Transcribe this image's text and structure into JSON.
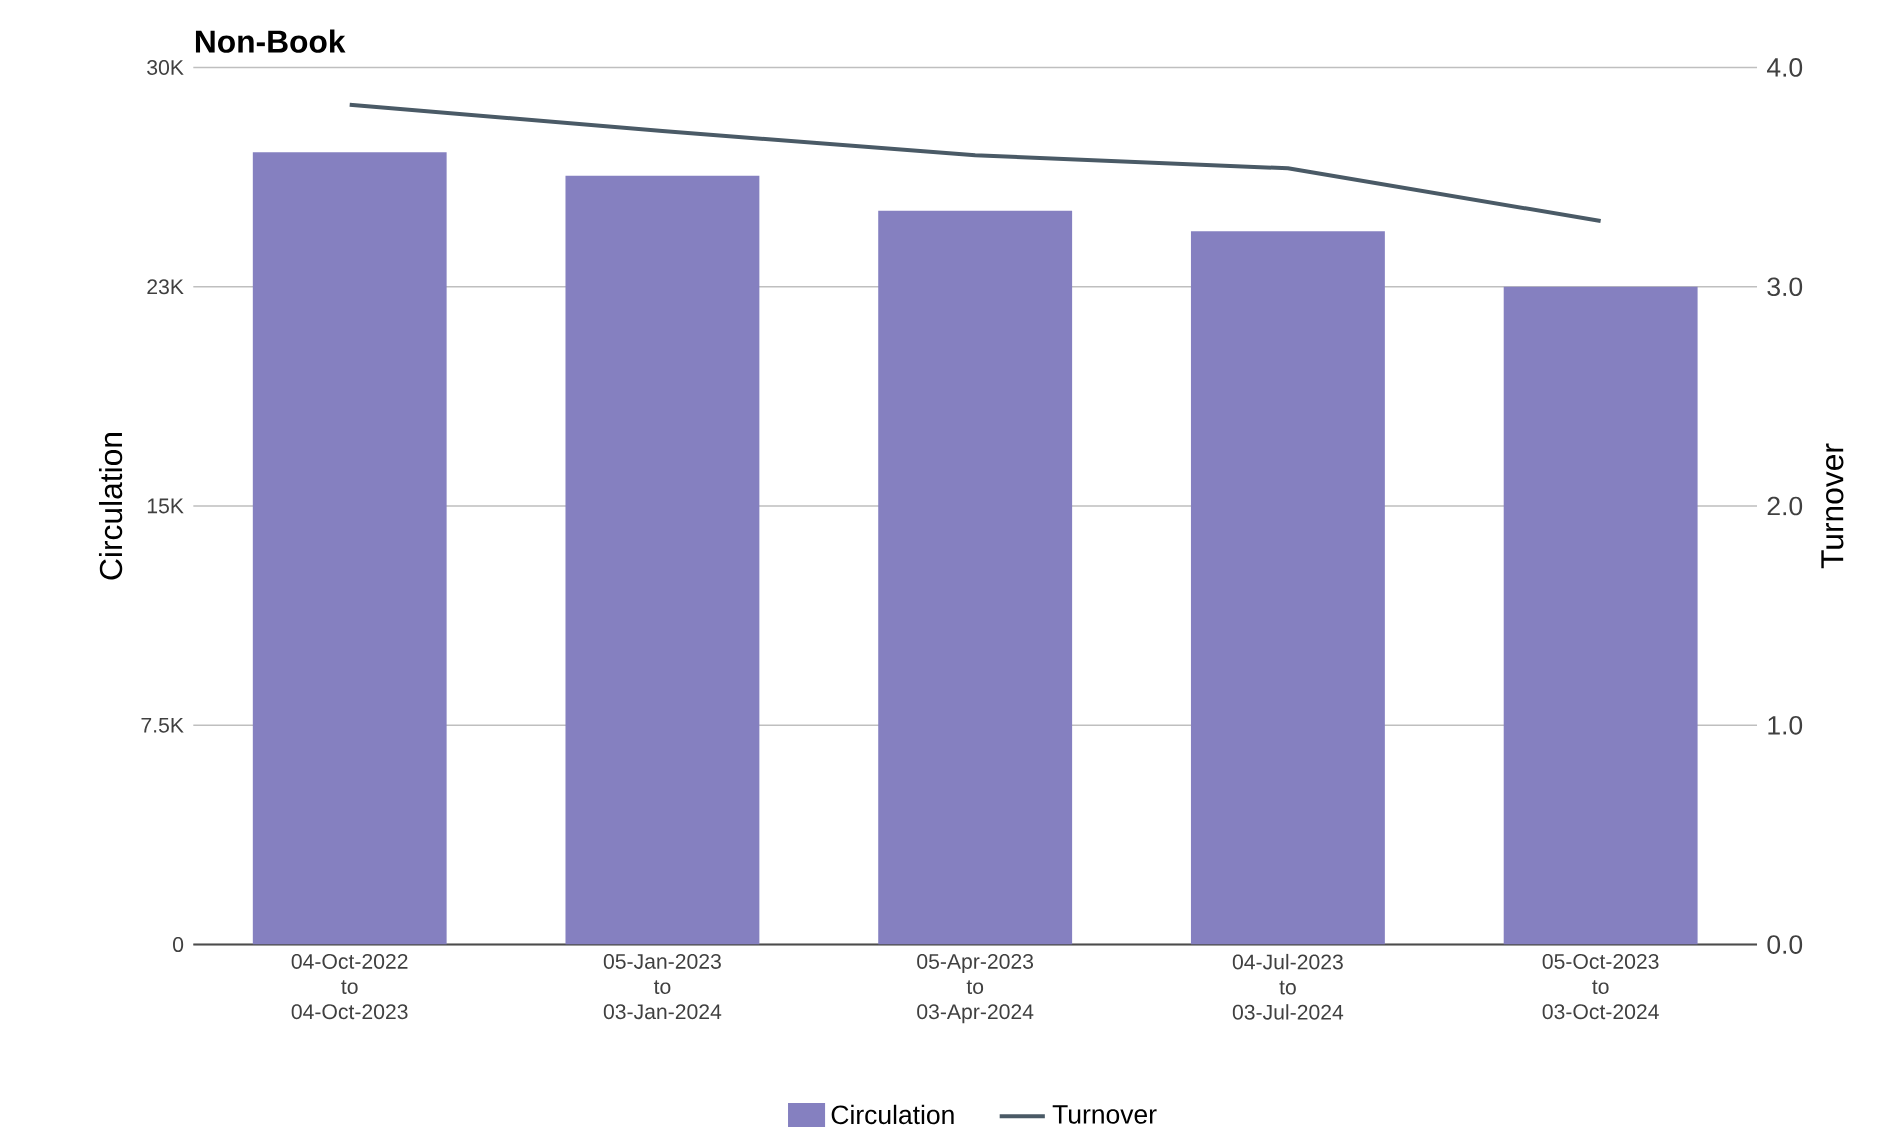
{
  "chart_data": {
    "type": "bar",
    "title": "Non-Book",
    "ylabel": "Circulation",
    "y2label": "Turnover",
    "categories": [
      "04-Oct-2022 to 04-Oct-2023",
      "05-Jan-2023 to 03-Jan-2024",
      "05-Apr-2023 to 03-Apr-2024",
      "04-Jul-2023 to 03-Jul-2024",
      "05-Oct-2023 to 03-Oct-2024"
    ],
    "series": [
      {
        "name": "Circulation",
        "color": "#8580c0",
        "values": [
          27100,
          26300,
          25100,
          24400,
          22500
        ]
      },
      {
        "name": "Turnover",
        "type": "line",
        "axis": "y2",
        "color": "#4a5a66",
        "values": [
          3.83,
          3.71,
          3.6,
          3.54,
          3.3
        ]
      }
    ],
    "ylim": [
      0,
      30000
    ],
    "yticks": [
      0,
      {
        "value": 7500,
        "label": "7.5K"
      },
      {
        "value": 15000,
        "label": "15K"
      },
      {
        "value": 22500,
        "label": "23K"
      },
      {
        "value": 30000,
        "label": "30K"
      }
    ],
    "y2lim": [
      0,
      4
    ],
    "y2ticks": [
      {
        "value": 0,
        "label": "0.0"
      },
      {
        "value": 1,
        "label": "1.0"
      },
      {
        "value": 2,
        "label": "2.0"
      },
      {
        "value": 3,
        "label": "3.0"
      },
      {
        "value": 4,
        "label": "4.0"
      }
    ],
    "grid": "y",
    "legend": "bottom"
  }
}
